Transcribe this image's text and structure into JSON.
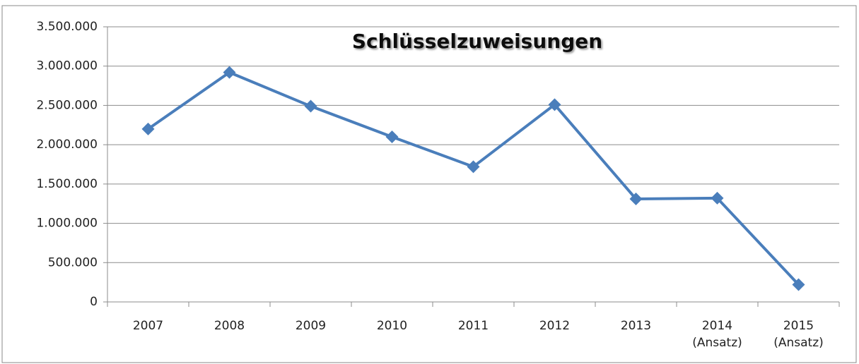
{
  "chart_data": {
    "type": "line",
    "title": "Schlüsselzuweisungen",
    "categories": [
      "2007",
      "2008",
      "2009",
      "2010",
      "2011",
      "2012",
      "2013",
      "2014 (Ansatz)",
      "2015 (Ansatz)"
    ],
    "series": [
      {
        "name": "Schlüsselzuweisungen",
        "color": "#4a7ebb",
        "values": [
          2200000,
          2920000,
          2490000,
          2100000,
          1720000,
          2510000,
          1310000,
          1320000,
          220000
        ]
      }
    ],
    "ylim": [
      0,
      3500000
    ],
    "yticks": [
      0,
      {
        "value": 500000,
        "label": "500.000"
      },
      {
        "value": 1000000,
        "label": "1.000.000"
      },
      {
        "value": 1500000,
        "label": "1.500.000"
      },
      {
        "value": 2000000,
        "label": "2.000.000"
      },
      {
        "value": 2500000,
        "label": "2.500.000"
      },
      {
        "value": 3000000,
        "label": "3.000.000"
      },
      {
        "value": 3500000,
        "label": "3.500.000"
      }
    ],
    "grid": true
  }
}
